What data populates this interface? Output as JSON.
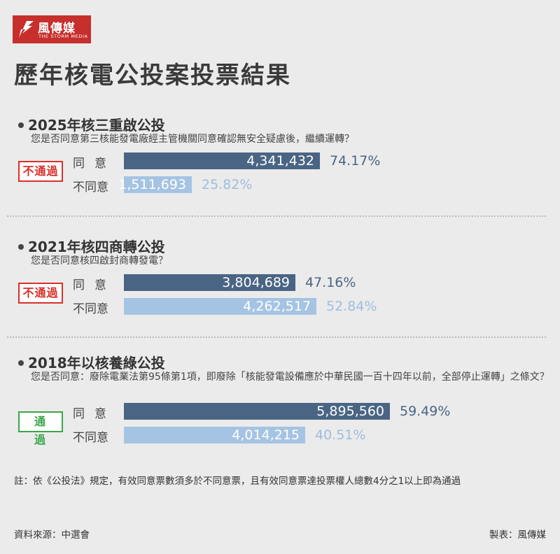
{
  "logo": {
    "name": "風傳媒",
    "sub": "THE STORM MEDIA"
  },
  "title": "歷年核電公投案投票結果",
  "labels": {
    "agree": "同意",
    "disagree": "不同意"
  },
  "colors": {
    "agree_bar": "#4a6584",
    "disagree_bar": "#a5c4e3",
    "fail": "#d9302b",
    "pass": "#3aa64a"
  },
  "chart_data": {
    "type": "bar",
    "orientation": "horizontal",
    "max_value": 5895560,
    "referendums": [
      {
        "title": "2025年核三重啟公投",
        "question": "您是否同意第三核能發電廠經主管機關同意確認無安全疑慮後，繼續運轉？",
        "result": "不通過",
        "agree": {
          "votes": 4341432,
          "votes_text": "4,341,432",
          "pct": "74.17%"
        },
        "disagree": {
          "votes": 1511693,
          "votes_text": "1,511,693",
          "pct": "25.82%"
        }
      },
      {
        "title": "2021年核四商轉公投",
        "question": "您是否同意核四啟封商轉發電？",
        "result": "不通過",
        "agree": {
          "votes": 3804689,
          "votes_text": "3,804,689",
          "pct": "47.16%"
        },
        "disagree": {
          "votes": 4262517,
          "votes_text": "4,262,517",
          "pct": "52.84%"
        }
      },
      {
        "title": "2018年以核養綠公投",
        "question": "您是否同意：廢除電業法第95條第1項，即廢除「核能發電設備應於中華民國一百十四年以前，全部停止運轉」之條文？",
        "result": "通過",
        "agree": {
          "votes": 5895560,
          "votes_text": "5,895,560",
          "pct": "59.49%"
        },
        "disagree": {
          "votes": 4014215,
          "votes_text": "4,014,215",
          "pct": "40.51%"
        }
      }
    ]
  },
  "note": "註：依《公投法》規定，有效同意票數須多於不同意票，且有效同意票達投票權人總數4分之1以上即為通過",
  "source": "資料來源：中選會",
  "credit": "製表：風傳媒"
}
